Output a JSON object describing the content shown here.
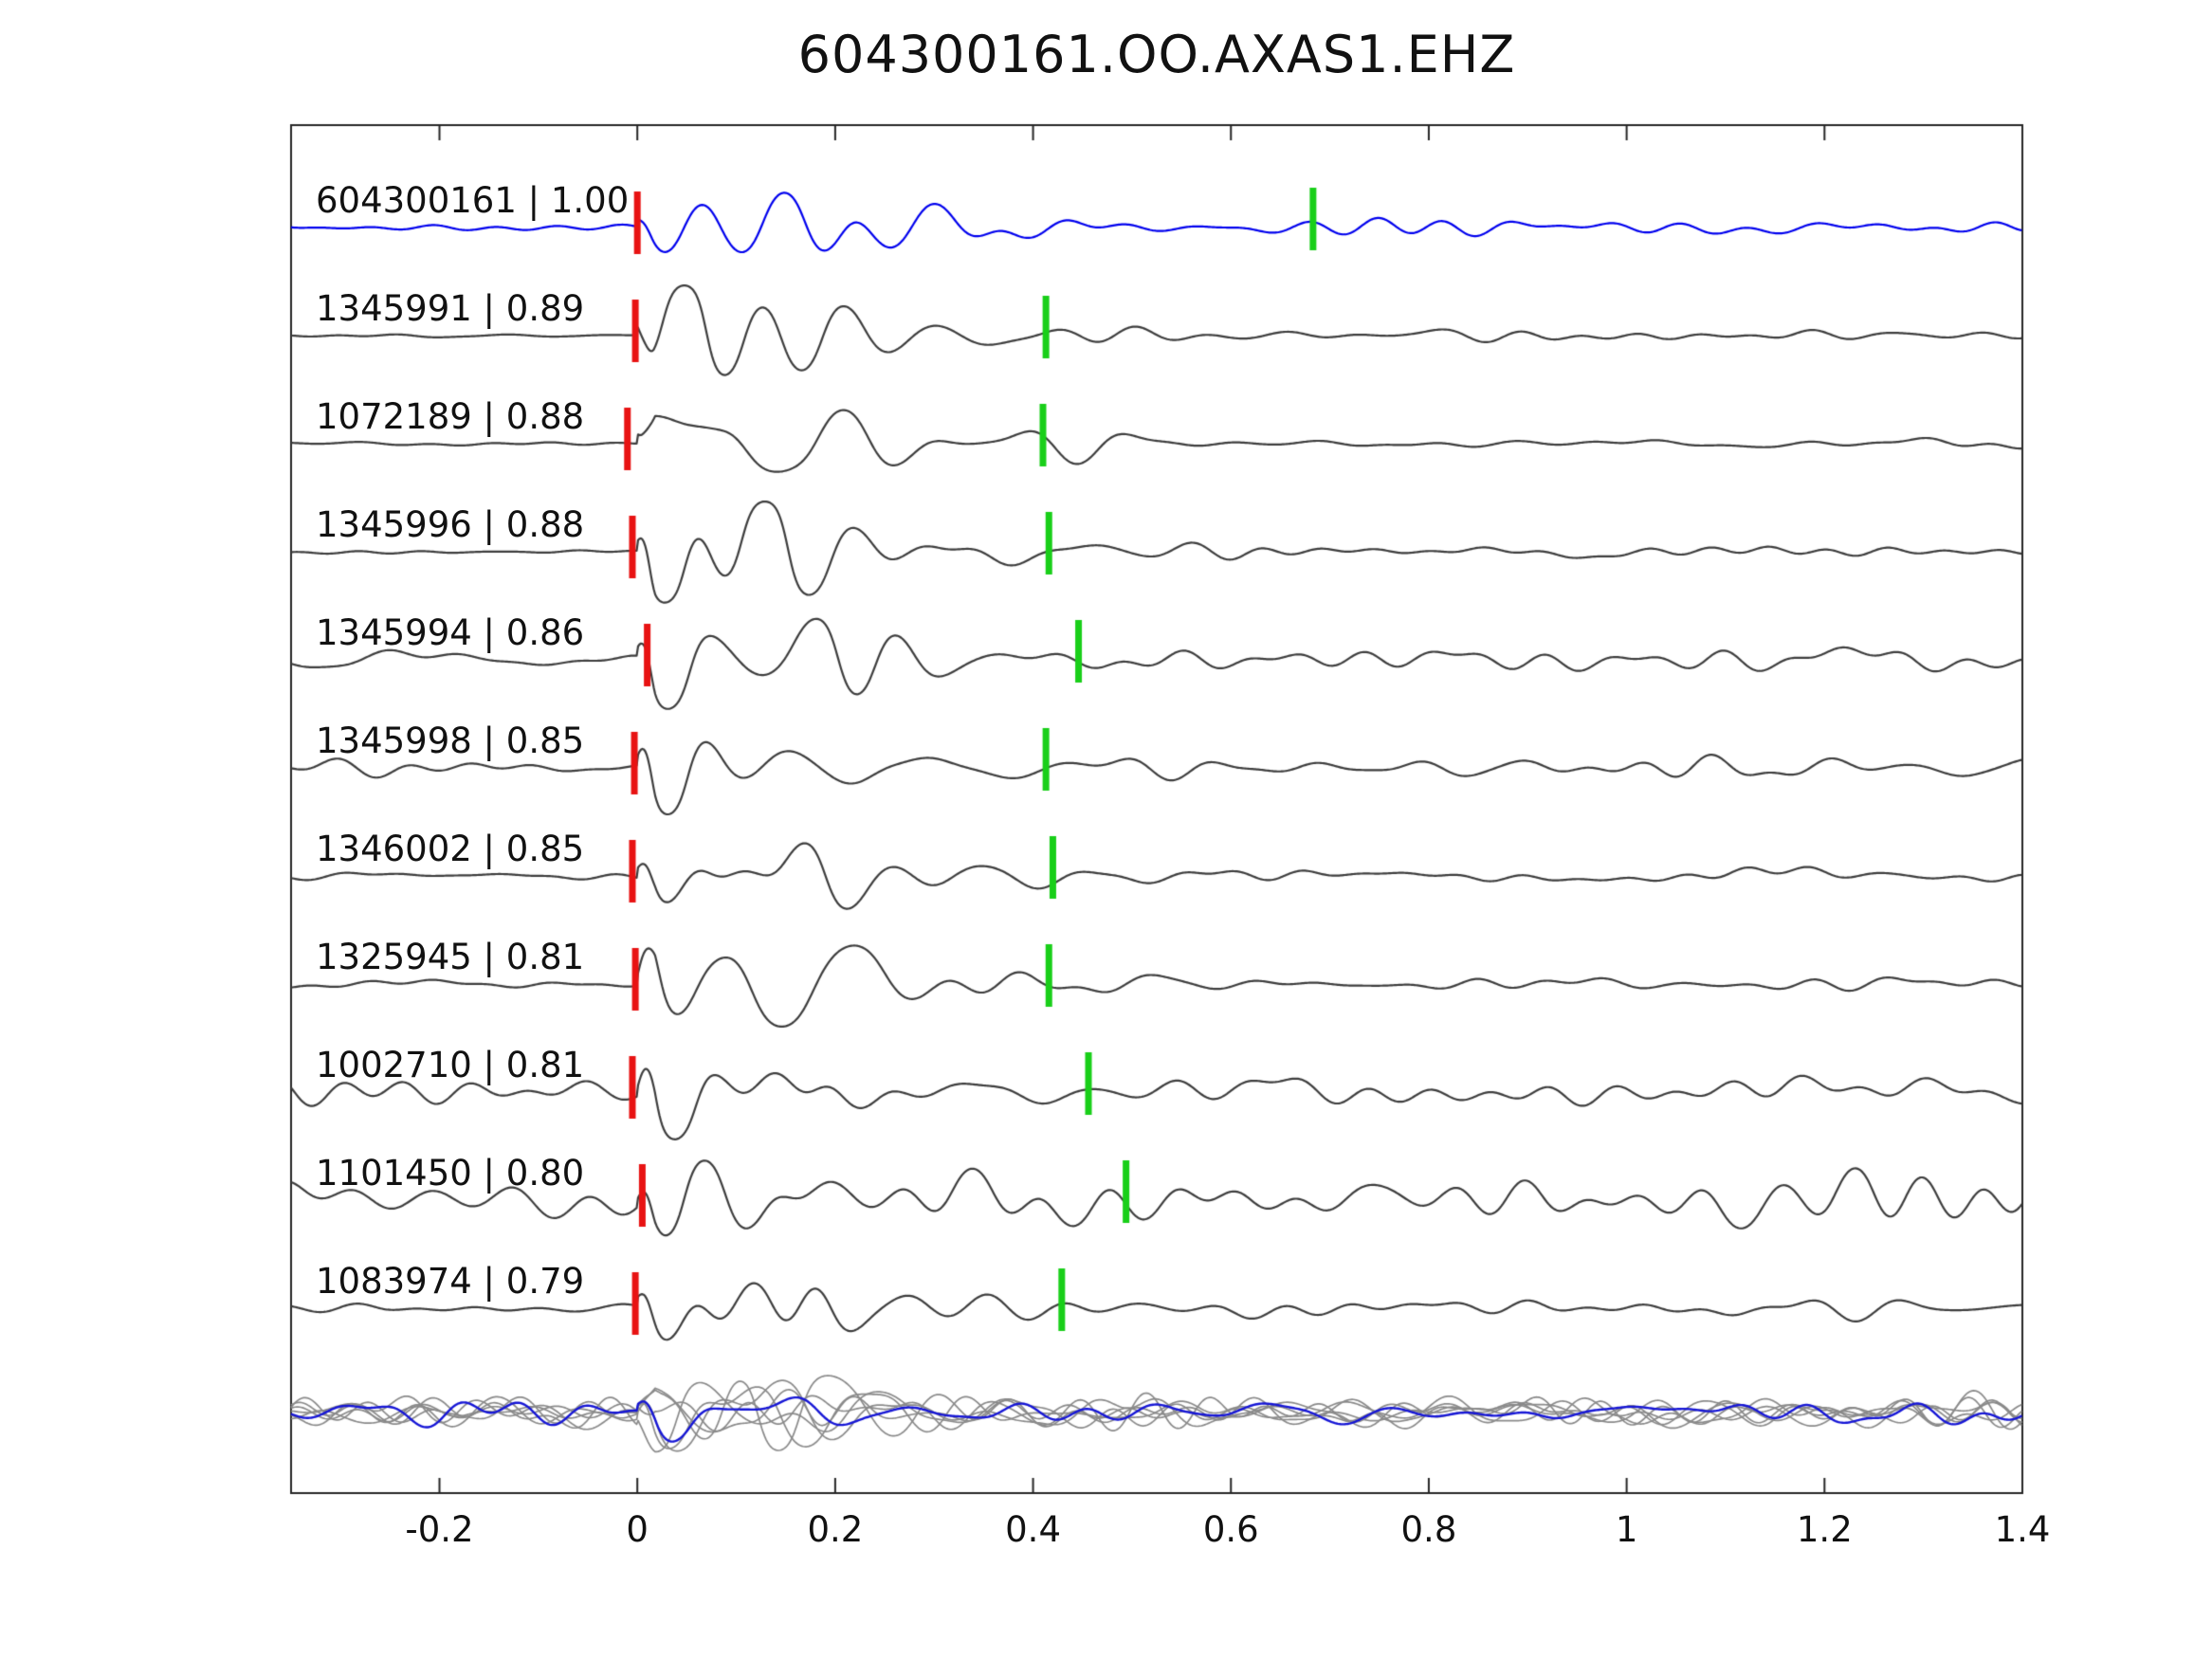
{
  "title": "604300161.OO.AXAS1.EHZ",
  "colors": {
    "background": "#ffffff",
    "axis": "#262626",
    "trace": "#3d3d3d",
    "template_trace": "#0000ee",
    "red_pick": "#e81313",
    "green_pick": "#19cf19",
    "text": "#111111"
  },
  "chart_data": {
    "type": "line",
    "title": "604300161.OO.AXAS1.EHZ",
    "xlabel": "",
    "ylabel": "",
    "grid": false,
    "legend": "none",
    "xlim": [
      -0.35,
      1.4
    ],
    "x_ticks": [
      -0.2,
      0,
      0.2,
      0.4,
      0.6,
      0.8,
      1,
      1.2,
      1.4
    ],
    "x_tick_labels": [
      "-0.2",
      "0",
      "0.2",
      "0.4",
      "0.6",
      "0.8",
      "1",
      "1.2",
      "1.4"
    ],
    "description": "Waveform similarity plot: each row is a seismogram aligned on its pick (red bar at x=0); green bar marks a secondary pick; bottom row overlays all gray traces with the blue template.",
    "traces": [
      {
        "label": "604300161 | 1.00",
        "event_id": "604300161",
        "cc": 1.0,
        "color": "#0000ee",
        "red_pick": 0.0,
        "green_pick": 0.683,
        "amp": 34,
        "noise_pre": 1.5,
        "noise_post": 3.0,
        "seed": 3
      },
      {
        "label": "1345991 | 0.89",
        "event_id": "1345991",
        "cc": 0.89,
        "color": "#3d3d3d",
        "red_pick": -0.002,
        "green_pick": 0.413,
        "amp": 40,
        "noise_pre": 1.0,
        "noise_post": 2.5,
        "seed": 7
      },
      {
        "label": "1072189 | 0.88",
        "event_id": "1072189",
        "cc": 0.88,
        "color": "#3d3d3d",
        "red_pick": -0.01,
        "green_pick": 0.41,
        "amp": 42,
        "noise_pre": 1.0,
        "noise_post": 2.5,
        "seed": 13
      },
      {
        "label": "1345996 | 0.88",
        "event_id": "1345996",
        "cc": 0.88,
        "color": "#3d3d3d",
        "red_pick": -0.005,
        "green_pick": 0.416,
        "amp": 40,
        "noise_pre": 1.2,
        "noise_post": 3.0,
        "seed": 21
      },
      {
        "label": "1345994 | 0.86",
        "event_id": "1345994",
        "cc": 0.86,
        "color": "#3d3d3d",
        "red_pick": 0.01,
        "green_pick": 0.446,
        "amp": 34,
        "noise_pre": 5.0,
        "noise_post": 6.0,
        "seed": 29
      },
      {
        "label": "1345998 | 0.85",
        "event_id": "1345998",
        "cc": 0.85,
        "color": "#3d3d3d",
        "red_pick": -0.003,
        "green_pick": 0.413,
        "amp": 38,
        "noise_pre": 4.0,
        "noise_post": 5.0,
        "seed": 37
      },
      {
        "label": "1346002 | 0.85",
        "event_id": "1346002",
        "cc": 0.85,
        "color": "#3d3d3d",
        "red_pick": -0.005,
        "green_pick": 0.42,
        "amp": 40,
        "noise_pre": 1.5,
        "noise_post": 3.0,
        "seed": 45
      },
      {
        "label": "1325945 | 0.81",
        "event_id": "1325945",
        "cc": 0.81,
        "color": "#3d3d3d",
        "red_pick": -0.002,
        "green_pick": 0.416,
        "amp": 40,
        "noise_pre": 1.5,
        "noise_post": 3.0,
        "seed": 53
      },
      {
        "label": "1002710 | 0.81",
        "event_id": "1002710",
        "cc": 0.81,
        "color": "#3d3d3d",
        "red_pick": -0.005,
        "green_pick": 0.456,
        "amp": 36,
        "noise_pre": 7.0,
        "noise_post": 8.0,
        "seed": 61
      },
      {
        "label": "1101450 | 0.80",
        "event_id": "1101450",
        "cc": 0.8,
        "color": "#3d3d3d",
        "red_pick": 0.005,
        "green_pick": 0.494,
        "amp": 34,
        "noise_pre": 11.0,
        "noise_post": 13.0,
        "seed": 69
      },
      {
        "label": "1083974 | 0.79",
        "event_id": "1083974",
        "cc": 0.79,
        "color": "#3d3d3d",
        "red_pick": -0.002,
        "green_pick": 0.429,
        "amp": 36,
        "noise_pre": 3.0,
        "noise_post": 5.0,
        "seed": 77
      }
    ],
    "stack_row": {
      "count": 6,
      "amp": 26,
      "noise": 7,
      "gray": "#8a8a8a",
      "highlight": "#1616d6",
      "seed": 101
    }
  }
}
